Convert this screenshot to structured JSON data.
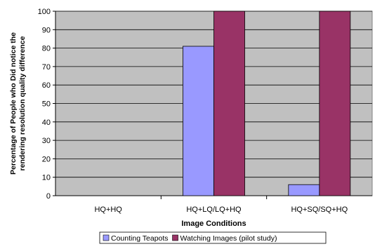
{
  "chart_data": {
    "type": "bar",
    "title": "",
    "xlabel": "Image Conditions",
    "ylabel_lines": [
      "Percentage of People who Did notice the",
      "rendering resolution quality difference"
    ],
    "categories": [
      "HQ+HQ",
      "HQ+LQ/LQ+HQ",
      "HQ+SQ/SQ+HQ"
    ],
    "series": [
      {
        "name": "Counting Teapots",
        "values": [
          0,
          81,
          6
        ],
        "color": "#9999ff"
      },
      {
        "name": "Watching Images (pilot study)",
        "values": [
          0,
          100,
          100
        ],
        "color": "#993366"
      }
    ],
    "ylim": [
      0,
      100
    ],
    "yticks": [
      0,
      10,
      20,
      30,
      40,
      50,
      60,
      70,
      80,
      90,
      100
    ],
    "grid": true,
    "plot_background": "#c0c0c0",
    "legend_position": "bottom"
  }
}
